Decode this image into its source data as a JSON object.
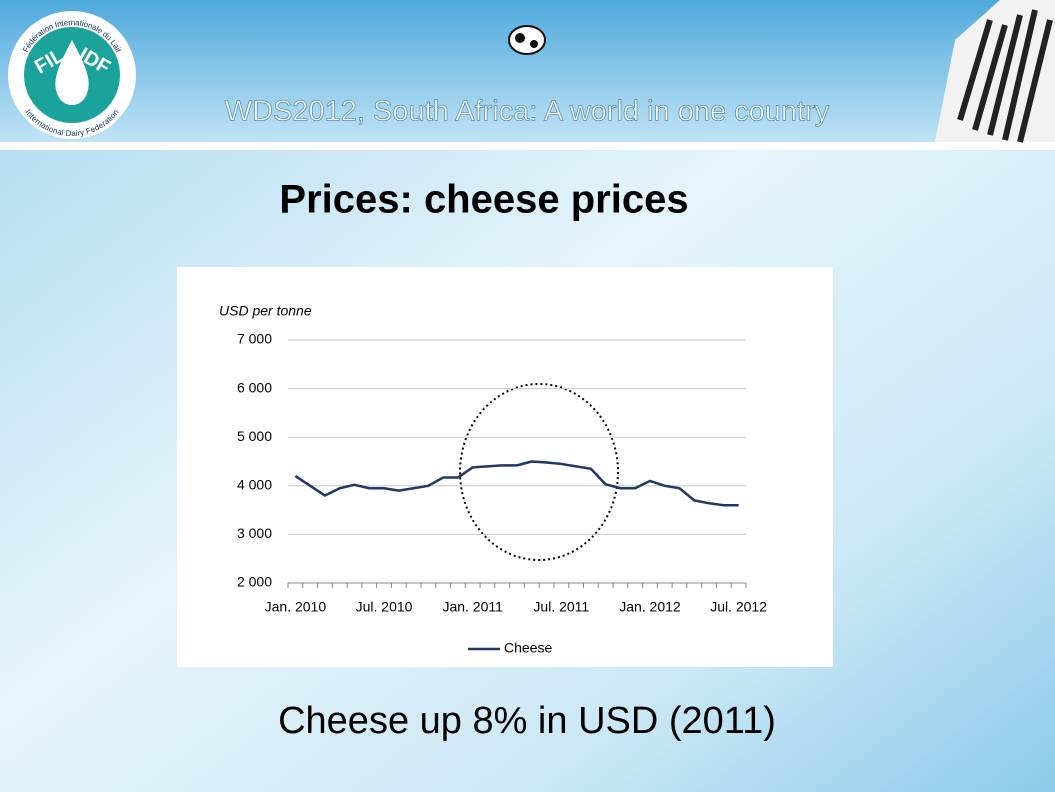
{
  "header": {
    "title": "WDS2012, South Africa: A world in one country",
    "logo": {
      "left": "FIL",
      "right": "IDF",
      "ring_top": "Fédération Internationale du Lait",
      "ring_bottom": "International Dairy Federation"
    }
  },
  "slide_title": "Prices: cheese prices",
  "chart_data": {
    "type": "line",
    "y_label": "USD per tonne",
    "categories": [
      "Jan. 2010",
      null,
      null,
      null,
      null,
      null,
      "Jul. 2010",
      null,
      null,
      null,
      null,
      null,
      "Jan. 2011",
      null,
      null,
      null,
      null,
      null,
      "Jul. 2011",
      null,
      null,
      null,
      null,
      null,
      "Jan. 2012",
      null,
      null,
      null,
      null,
      null,
      "Jul. 2012"
    ],
    "series": [
      {
        "name": "Cheese",
        "color": "#1f3864",
        "values": [
          4200,
          4000,
          3800,
          3950,
          4020,
          3950,
          3950,
          3900,
          3950,
          4000,
          4170,
          4170,
          4380,
          4400,
          4420,
          4420,
          4500,
          4480,
          4450,
          4400,
          4350,
          4030,
          3950,
          3950,
          4100,
          4000,
          3950,
          3700,
          3640,
          3600,
          3600
        ]
      }
    ],
    "ylim": [
      2000,
      7000
    ],
    "yticks": [
      {
        "value": 2000,
        "label": "2 000"
      },
      {
        "value": 3000,
        "label": "3 000"
      },
      {
        "value": 4000,
        "label": "4 000"
      },
      {
        "value": 5000,
        "label": "5 000"
      },
      {
        "value": 6000,
        "label": "6 000"
      },
      {
        "value": 7000,
        "label": "7 000"
      }
    ],
    "grid": true,
    "legend": "bottom"
  },
  "caption": "Cheese up 8% in USD (2011)"
}
